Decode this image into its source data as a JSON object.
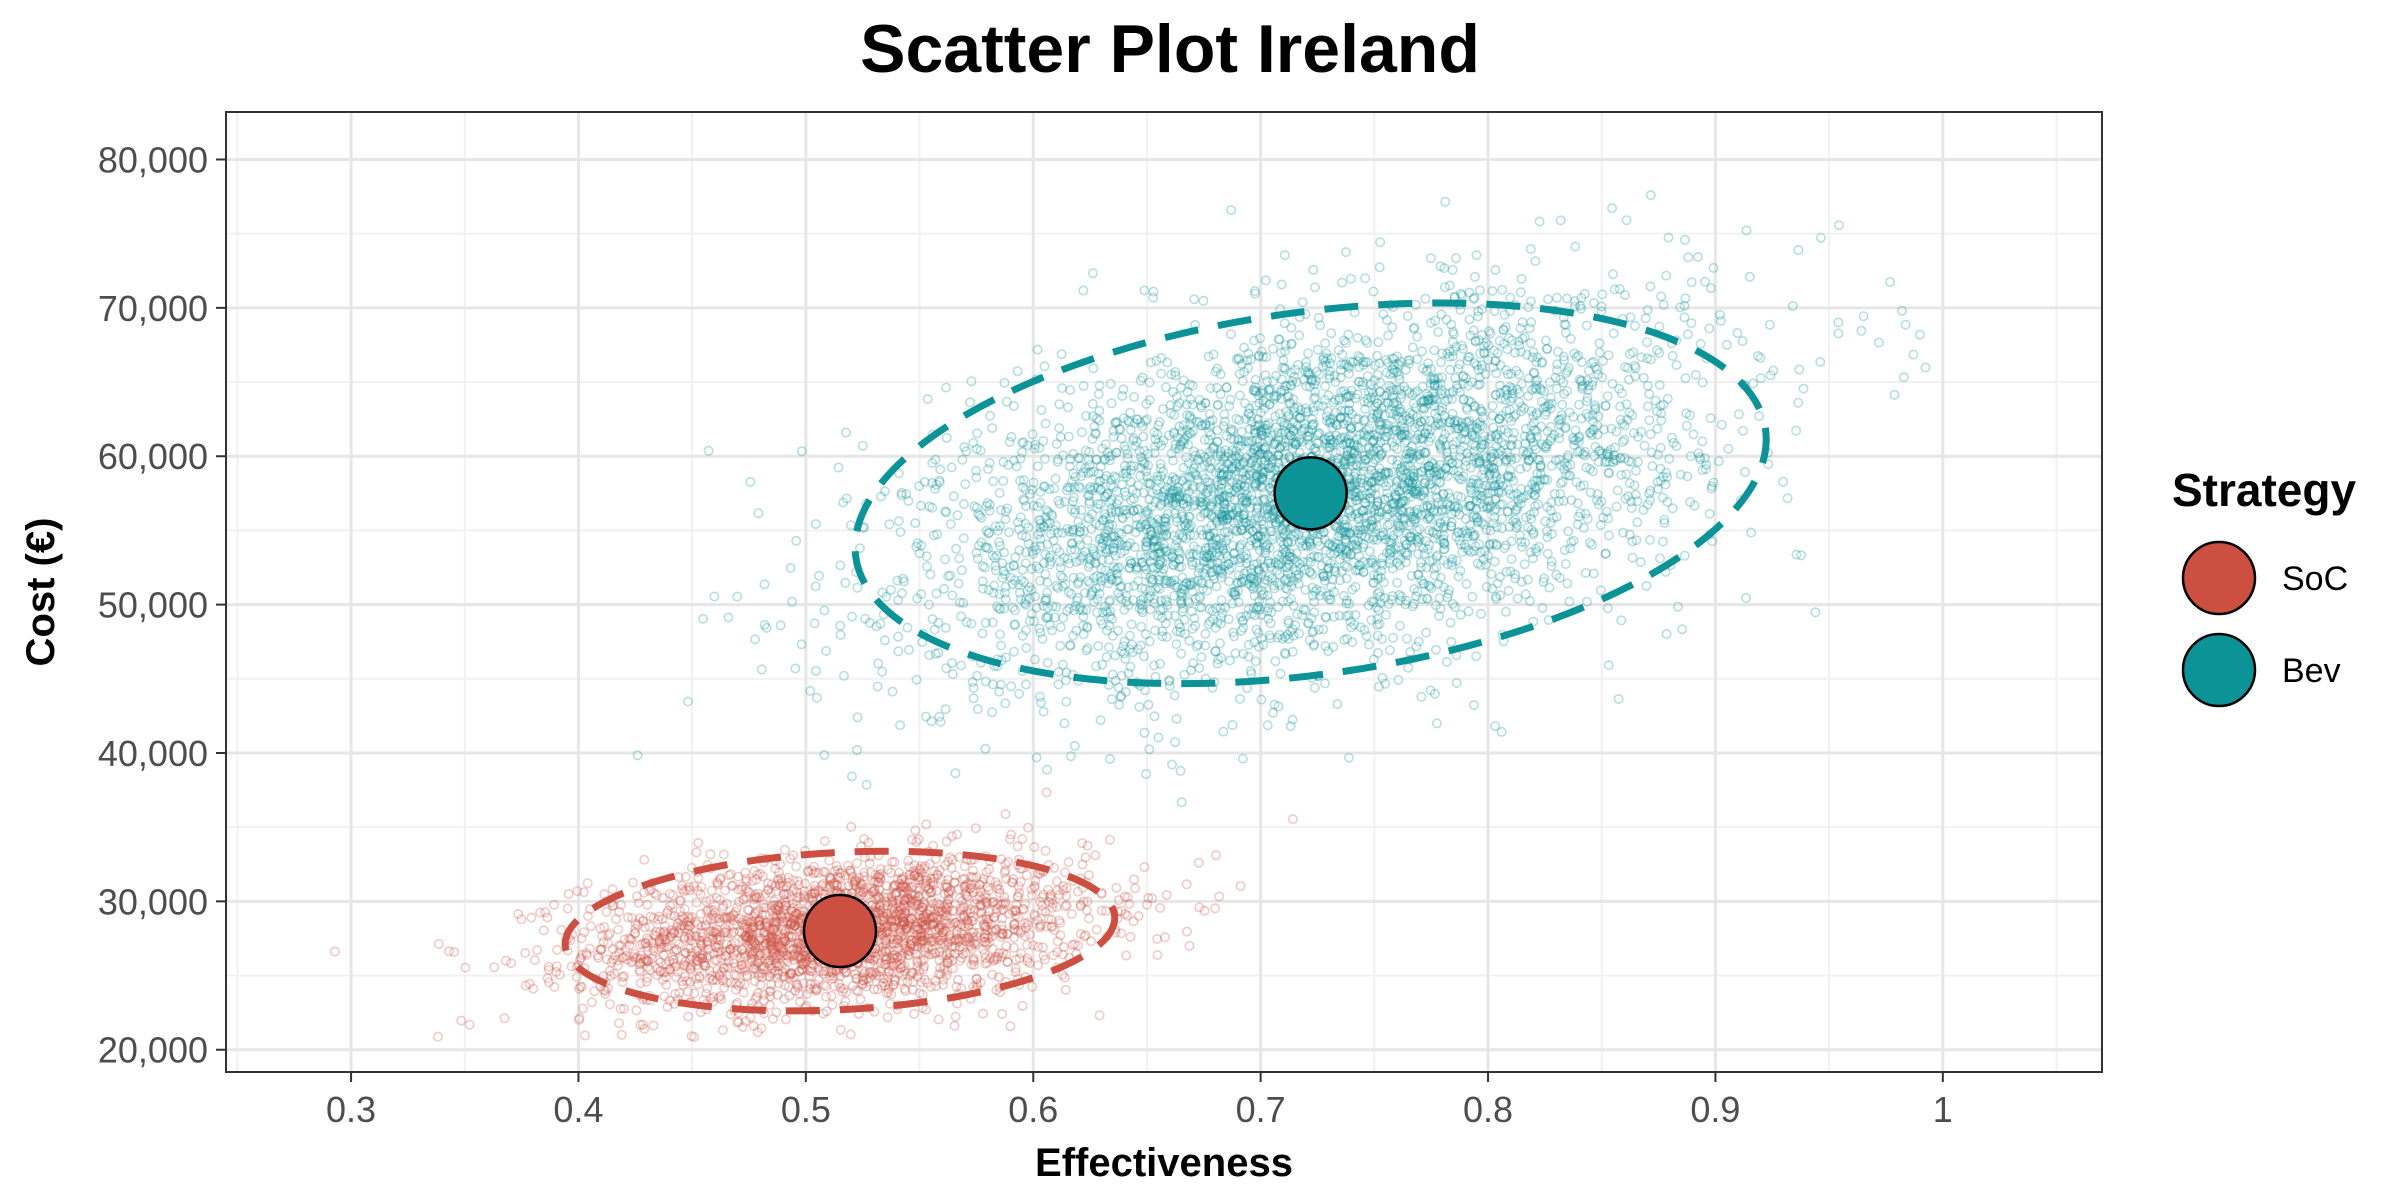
{
  "chart_data": {
    "type": "scatter",
    "title": "Scatter Plot Ireland",
    "xlabel": "Effectiveness",
    "ylabel": "Cost (€)",
    "xlim": [
      0.245,
      1.07
    ],
    "ylim": [
      18500,
      83200
    ],
    "x_ticks": [
      0.3,
      0.4,
      0.5,
      0.6,
      0.7,
      0.8,
      0.9,
      1
    ],
    "x_tick_labels": [
      "0.3",
      "0.4",
      "0.5",
      "0.6",
      "0.7",
      "0.8",
      "0.9",
      "1"
    ],
    "y_ticks": [
      20000,
      30000,
      40000,
      50000,
      60000,
      70000,
      80000
    ],
    "y_tick_labels": [
      "20,000",
      "30,000",
      "40,000",
      "50,000",
      "60,000",
      "70,000",
      "80,000"
    ],
    "grid": true,
    "legend": {
      "title": "Strategy",
      "position": "right",
      "entries": [
        "SoC",
        "Bev"
      ]
    },
    "series": [
      {
        "name": "SoC",
        "color": "#CD4F41",
        "mean": {
          "x": 0.515,
          "y": 28000
        },
        "sd": {
          "x": 0.055,
          "y": 2500
        },
        "correlation": 0.25,
        "ellipse": {
          "center_x": 0.515,
          "center_y": 28000,
          "half_width_x": 0.121,
          "half_height_y": 5300,
          "tilt_deg": 3
        },
        "n_points": 2500
      },
      {
        "name": "Bev",
        "color": "#0C9398",
        "mean": {
          "x": 0.722,
          "y": 57500
        },
        "sd": {
          "x": 0.082,
          "y": 6000
        },
        "correlation": 0.45,
        "ellipse": {
          "center_x": 0.722,
          "center_y": 57500,
          "half_width_x": 0.202,
          "half_height_y": 12200,
          "tilt_deg": 8
        },
        "n_points": 4500
      }
    ]
  }
}
